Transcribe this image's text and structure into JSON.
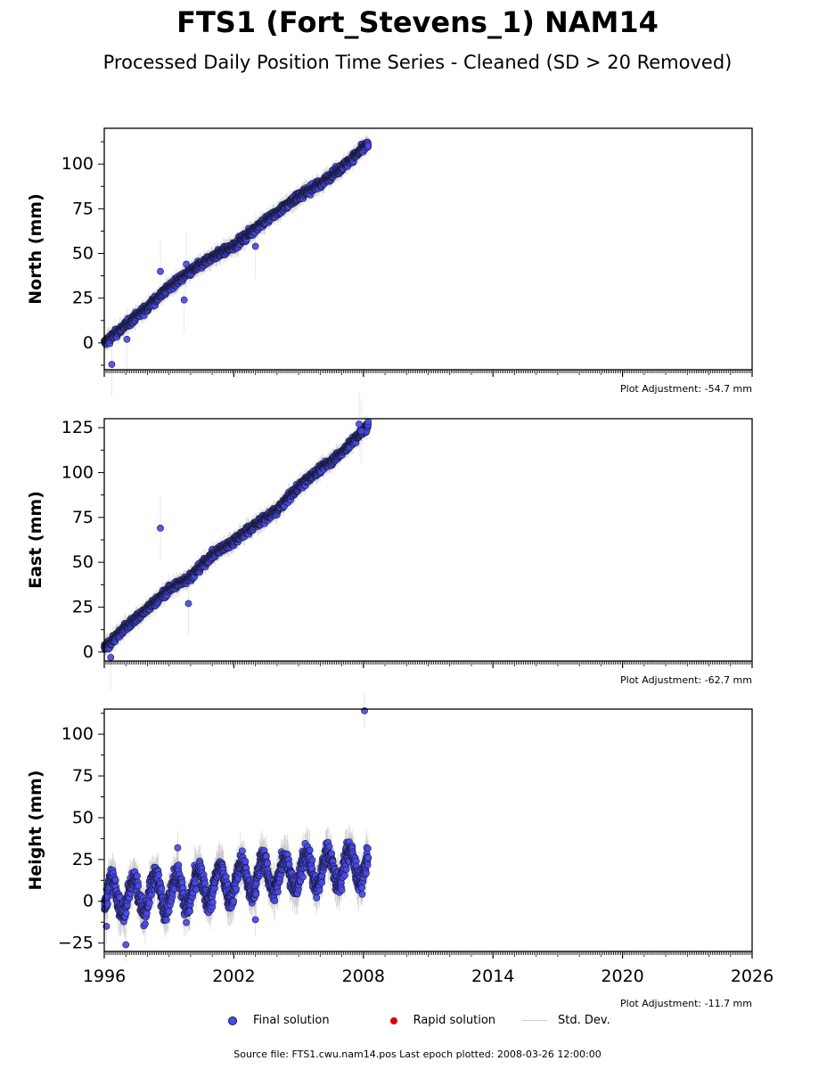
{
  "header": {
    "title": "FTS1 (Fort_Stevens_1) NAM14",
    "subtitle": "Processed Daily Position Time Series - Cleaned (SD > 20 Removed)"
  },
  "colors": {
    "final": "#4a4aee",
    "rapid": "#dd0000",
    "stddev": "#c8c8c8",
    "marker_edge": "#1a1a3a"
  },
  "legend": {
    "final_label": "Final solution",
    "rapid_label": "Rapid solution",
    "std_label": "Std. Dev."
  },
  "footer": {
    "text": "Source file: FTS1.cwu.nam14.pos  Last epoch plotted: 2008-03-26 12:00:00"
  },
  "chart_data": [
    {
      "type": "scatter",
      "ylabel": "North (mm)",
      "adjustment": "Plot Adjustment: -54.7 mm",
      "xlim": [
        1996,
        2026
      ],
      "ylim": [
        -15,
        120
      ],
      "yticks": [
        0,
        25,
        50,
        75,
        100
      ],
      "trend": [
        [
          1996.0,
          0
        ],
        [
          1997.0,
          10
        ],
        [
          1998.0,
          20
        ],
        [
          1999.0,
          31
        ],
        [
          2000.0,
          40
        ],
        [
          2001.0,
          48
        ],
        [
          2002.0,
          54
        ],
        [
          2003.0,
          64
        ],
        [
          2004.0,
          73
        ],
        [
          2005.0,
          82
        ],
        [
          2006.0,
          89
        ],
        [
          2007.0,
          98
        ],
        [
          2008.2,
          111
        ]
      ],
      "outliers": [
        [
          1996.35,
          -12
        ],
        [
          1998.6,
          40
        ],
        [
          1999.7,
          24
        ],
        [
          1999.8,
          44
        ],
        [
          2003.0,
          54
        ],
        [
          1997.05,
          2
        ]
      ],
      "series": [
        {
          "name": "Final solution",
          "values": "dense daily positions 1996.0-2008.23"
        }
      ]
    },
    {
      "type": "scatter",
      "ylabel": "East (mm)",
      "adjustment": "Plot Adjustment: -62.7 mm",
      "xlim": [
        1996,
        2026
      ],
      "ylim": [
        -5,
        130
      ],
      "yticks": [
        0,
        25,
        50,
        75,
        100,
        125
      ],
      "trend": [
        [
          1996.0,
          2
        ],
        [
          1997.0,
          14
        ],
        [
          1998.0,
          24
        ],
        [
          1999.0,
          35
        ],
        [
          2000.0,
          42
        ],
        [
          2001.0,
          54
        ],
        [
          2002.0,
          62
        ],
        [
          2003.0,
          71
        ],
        [
          2004.0,
          79
        ],
        [
          2005.0,
          92
        ],
        [
          2006.0,
          102
        ],
        [
          2007.0,
          111
        ],
        [
          2008.2,
          126
        ]
      ],
      "outliers": [
        [
          1998.6,
          69
        ],
        [
          1999.9,
          27
        ],
        [
          1996.3,
          -3
        ],
        [
          2007.8,
          127
        ],
        [
          2007.9,
          123
        ]
      ],
      "series": [
        {
          "name": "Final solution",
          "values": "dense daily positions 1996.0-2008.23"
        }
      ]
    },
    {
      "type": "scatter",
      "ylabel": "Height (mm)",
      "adjustment": "Plot Adjustment: -11.7 mm",
      "xlim": [
        1996,
        2026
      ],
      "ylim": [
        -30,
        115
      ],
      "yticks": [
        -25,
        0,
        25,
        50,
        75,
        100
      ],
      "xticks": [
        1996,
        2002,
        2008,
        2014,
        2020,
        2026
      ],
      "trend": [
        [
          1996.0,
          2
        ],
        [
          2000.0,
          7
        ],
        [
          2003.0,
          15
        ],
        [
          2008.2,
          22
        ]
      ],
      "seasonal_amplitude": 10,
      "outliers": [
        [
          2008.05,
          114
        ],
        [
          1999.4,
          32
        ],
        [
          1996.1,
          -15
        ],
        [
          1997.0,
          -26
        ],
        [
          2003.0,
          -11
        ]
      ],
      "series": [
        {
          "name": "Final solution",
          "values": "dense daily positions 1996.0-2008.23"
        }
      ]
    }
  ]
}
